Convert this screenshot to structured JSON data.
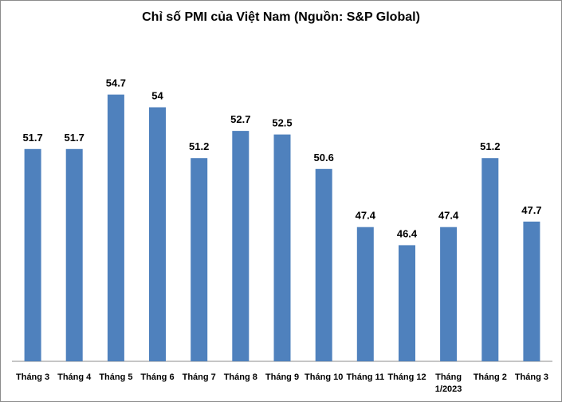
{
  "chart_data": {
    "type": "bar",
    "title": "Chỉ số PMI của Việt Nam (Nguồn: S&P Global)",
    "categories": [
      "Tháng 3",
      "Tháng 4",
      "Tháng 5",
      "Tháng 6",
      "Tháng 7",
      "Tháng 8",
      "Tháng 9",
      "Tháng 10",
      "Tháng 11",
      "Tháng 12",
      "Tháng 1/2023",
      "Tháng 2",
      "Tháng 3"
    ],
    "category_lines": [
      [
        "Tháng 3"
      ],
      [
        "Tháng 4"
      ],
      [
        "Tháng 5"
      ],
      [
        "Tháng 6"
      ],
      [
        "Tháng 7"
      ],
      [
        "Tháng 8"
      ],
      [
        "Tháng 9"
      ],
      [
        "Tháng 10"
      ],
      [
        "Tháng 11"
      ],
      [
        "Tháng 12"
      ],
      [
        "Tháng",
        "1/2023"
      ],
      [
        "Tháng 2"
      ],
      [
        "Tháng 3"
      ]
    ],
    "values": [
      51.7,
      51.7,
      54.7,
      54,
      51.2,
      52.7,
      52.5,
      50.6,
      47.4,
      46.4,
      47.4,
      51.2,
      47.7
    ],
    "value_labels": [
      "51.7",
      "51.7",
      "54.7",
      "54",
      "51.2",
      "52.7",
      "52.5",
      "50.6",
      "47.4",
      "46.4",
      "47.4",
      "51.2",
      "47.7"
    ],
    "ylim": [
      40,
      56
    ],
    "bar_color": "#4f81bd",
    "grid": false,
    "legend": "none"
  }
}
